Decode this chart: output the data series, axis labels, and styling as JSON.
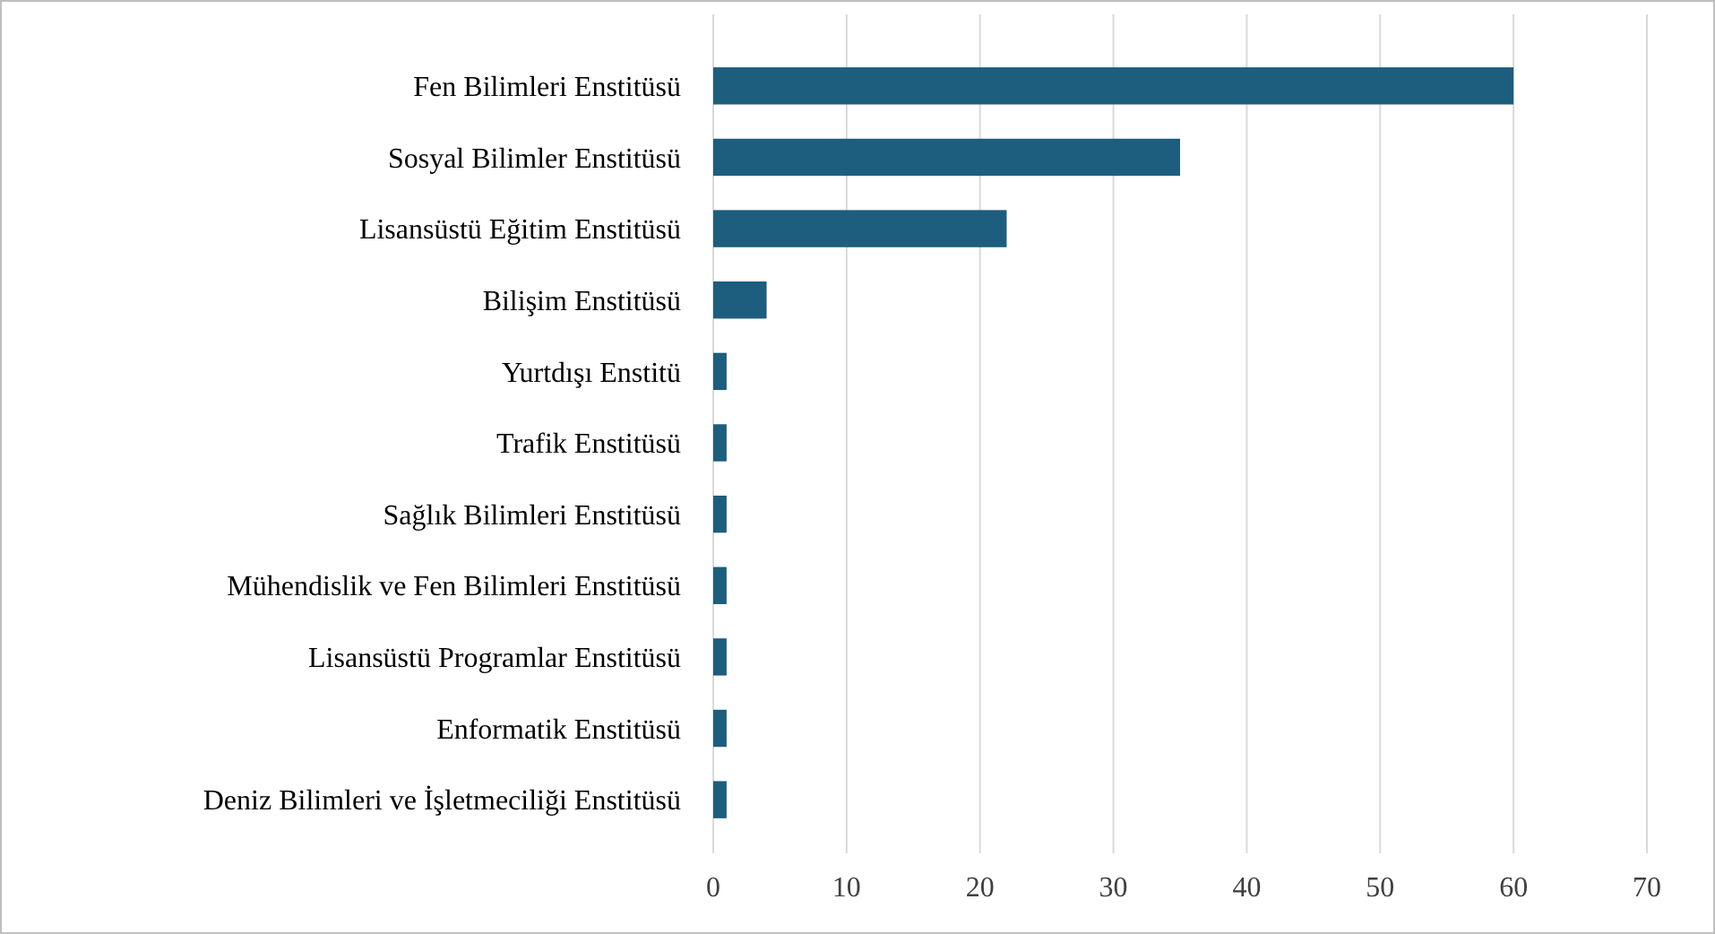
{
  "chart_data": {
    "type": "bar",
    "orientation": "horizontal",
    "categories": [
      "Fen Bilimleri Enstitüsü",
      "Sosyal Bilimler Enstitüsü",
      "Lisansüstü Eğitim Enstitüsü",
      "Bilişim Enstitüsü",
      "Yurtdışı Enstitü",
      "Trafik Enstitüsü",
      "Sağlık Bilimleri Enstitüsü",
      "Mühendislik ve Fen Bilimleri Enstitüsü",
      "Lisansüstü Programlar Enstitüsü",
      "Enformatik Enstitüsü",
      "Deniz Bilimleri ve İşletmeciliği Enstitüsü"
    ],
    "values": [
      60,
      35,
      22,
      4,
      1,
      1,
      1,
      1,
      1,
      1,
      1
    ],
    "color": "#1d5d7e",
    "xlim": [
      0,
      70
    ],
    "xticks": [
      0,
      10,
      20,
      30,
      40,
      50,
      60,
      70
    ],
    "grid": "x"
  }
}
